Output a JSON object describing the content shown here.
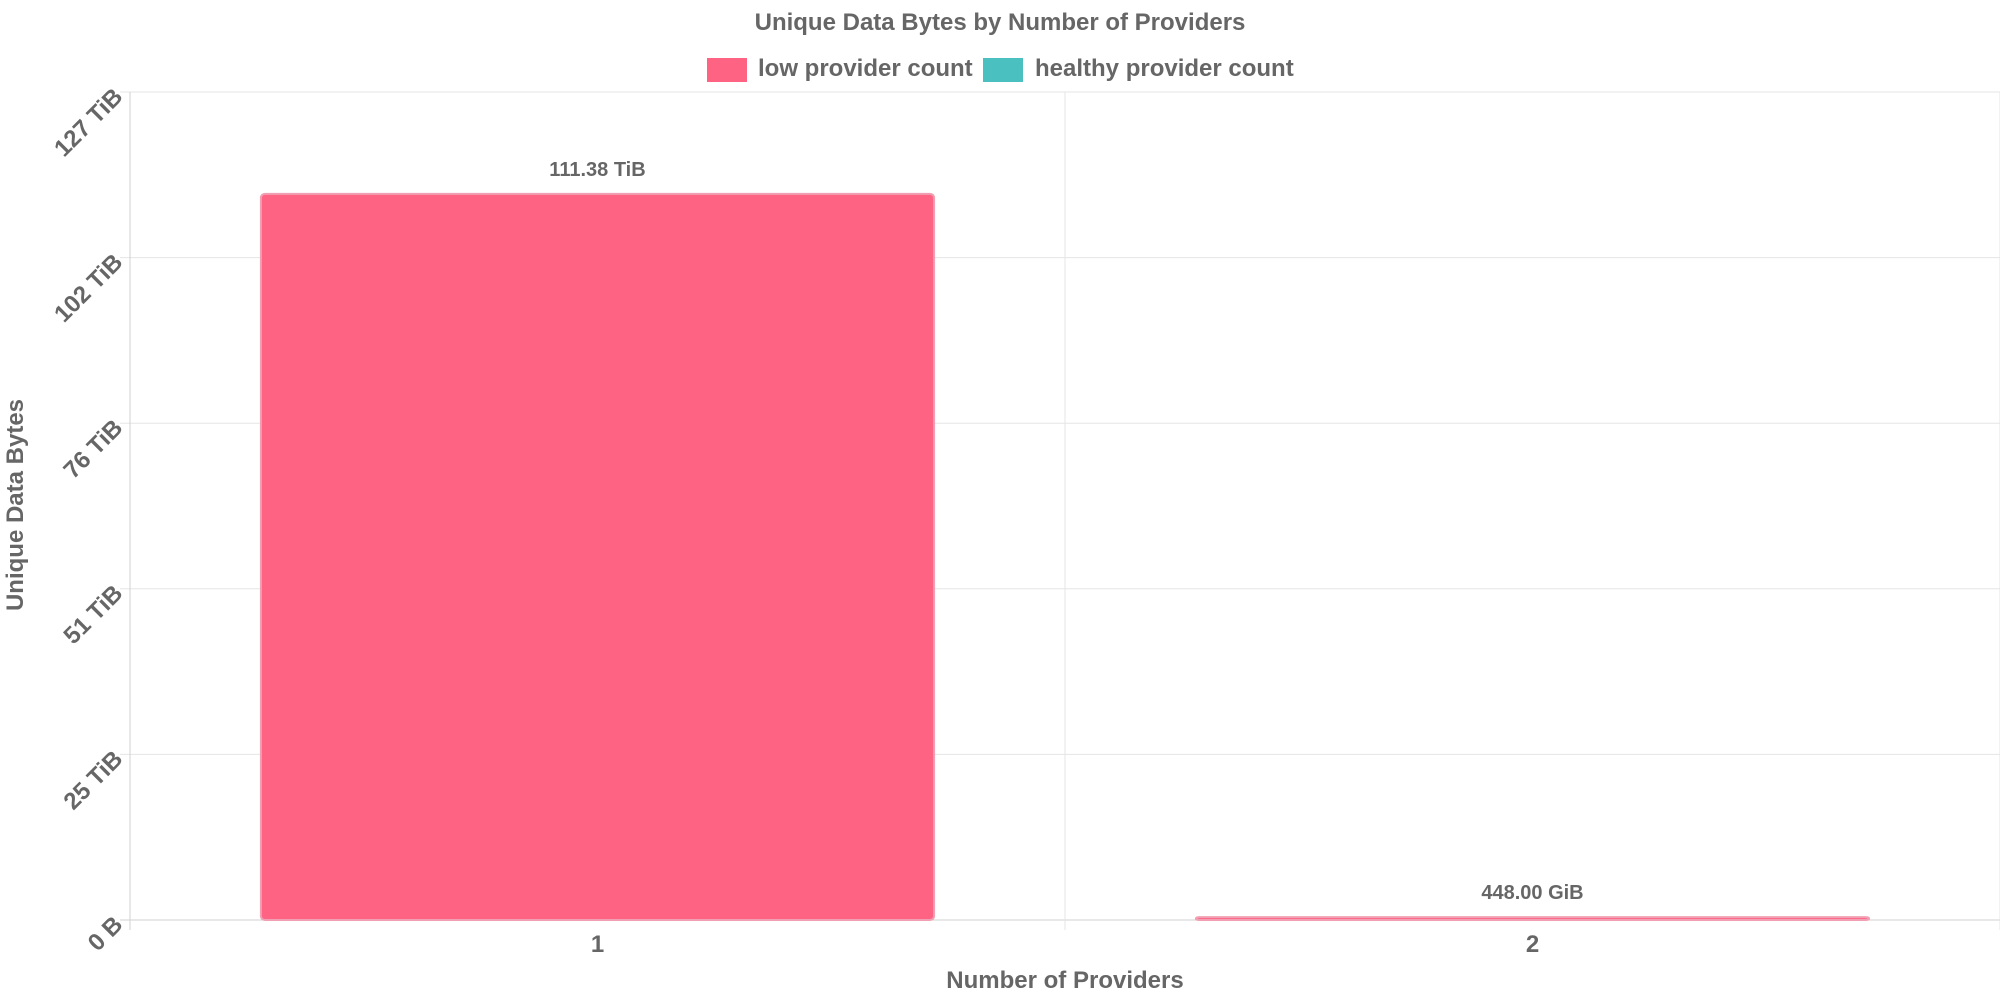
{
  "chart_data": {
    "type": "bar",
    "title": "Unique Data Bytes by Number of Providers",
    "xlabel": "Number of Providers",
    "ylabel": "Unique Data Bytes",
    "categories": [
      "1",
      "2"
    ],
    "series": [
      {
        "name": "low provider count",
        "color": "#ff6384",
        "values": [
          111.38,
          0.4375
        ],
        "value_labels": [
          "111.38 TiB",
          "448.00 GiB"
        ]
      },
      {
        "name": "healthy provider count",
        "color": "#4bc0c0",
        "values": [
          0,
          0
        ],
        "value_labels": []
      }
    ],
    "y_unit": "TiB",
    "ylim": [
      0,
      127
    ],
    "y_ticks": [
      {
        "value": 0,
        "label": "0 B"
      },
      {
        "value": 25.4,
        "label": "25 TiB"
      },
      {
        "value": 50.8,
        "label": "51 TiB"
      },
      {
        "value": 76.2,
        "label": "76 TiB"
      },
      {
        "value": 101.6,
        "label": "102 TiB"
      },
      {
        "value": 127,
        "label": "127 TiB"
      }
    ],
    "grid": true,
    "legend_position": "top"
  }
}
